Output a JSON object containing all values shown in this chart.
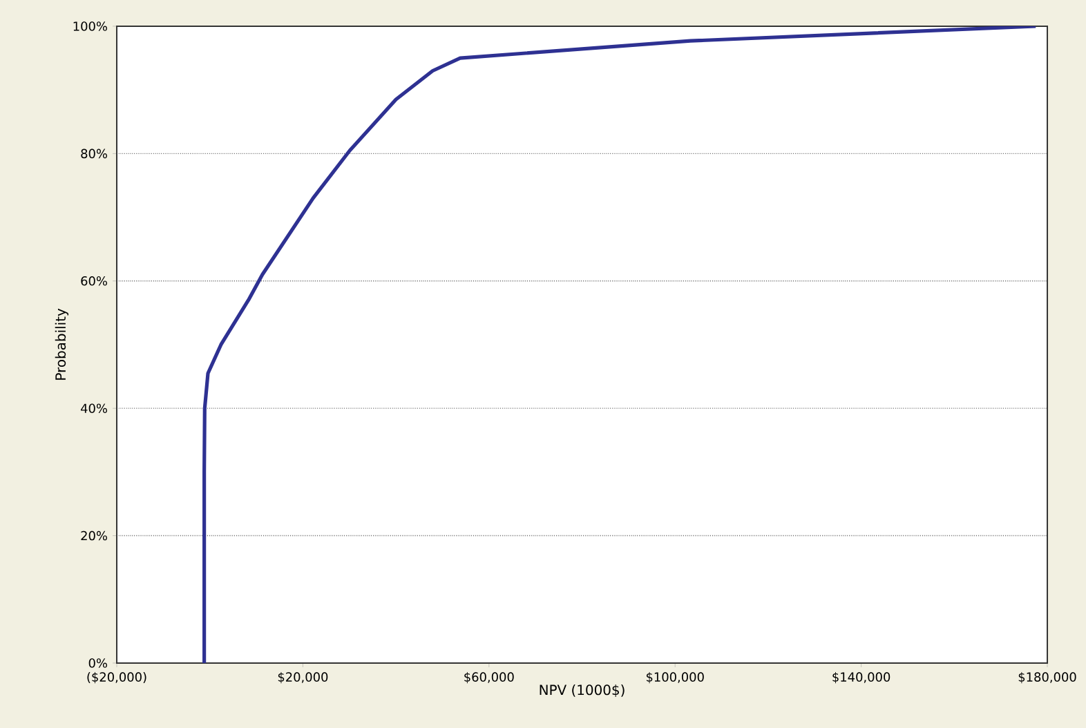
{
  "chart_data": {
    "type": "line",
    "xlabel": "NPV (1000$)",
    "ylabel": "Probability",
    "series": [
      {
        "color": "#2e3192",
        "x": [
          -1200,
          -1200,
          -1100,
          -400,
          2400,
          8300,
          11300,
          22200,
          30100,
          40000,
          47900,
          53800,
          103300,
          177500
        ],
        "values": [
          0,
          30,
          40,
          45.5,
          50,
          57,
          61,
          73,
          80.5,
          88.5,
          93,
          95,
          97.7,
          100
        ]
      }
    ],
    "xlim": [
      -20000,
      180000
    ],
    "xticks": [
      {
        "value": -20000,
        "label": "($20,000)"
      },
      {
        "value": 20000,
        "label": "$20,000"
      },
      {
        "value": 60000,
        "label": "$60,000"
      },
      {
        "value": 100000,
        "label": "$100,000"
      },
      {
        "value": 140000,
        "label": "$140,000"
      },
      {
        "value": 180000,
        "label": "$180,000"
      }
    ],
    "ylim": [
      0,
      100
    ],
    "yticks": [
      {
        "value": 0,
        "label": "0%"
      },
      {
        "value": 20,
        "label": "20%"
      },
      {
        "value": 40,
        "label": "40%"
      },
      {
        "value": 60,
        "label": "60%"
      },
      {
        "value": 80,
        "label": "80%"
      },
      {
        "value": 100,
        "label": "100%"
      }
    ],
    "grid": "y",
    "marker": "none",
    "line_style": "solid"
  }
}
